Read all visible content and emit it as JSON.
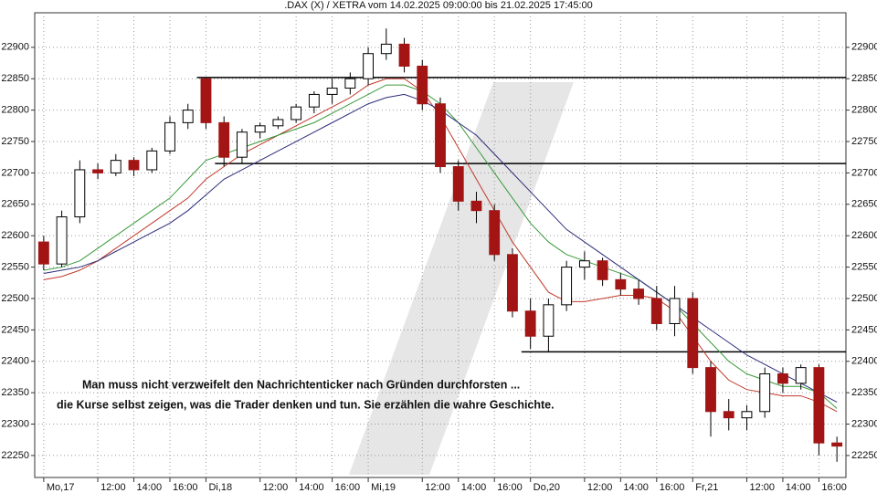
{
  "chart_data": {
    "type": "candlestick",
    "title": ".DAX (X) / XETRA vom 14.02.2025 09:00:00 bis 21.02.2025 17:45:00",
    "categories": [
      "Mo,17",
      null,
      null,
      "12:00",
      null,
      "14:00",
      null,
      "16:00",
      null,
      "Di,18",
      null,
      null,
      "12:00",
      null,
      "14:00",
      null,
      "16:00",
      null,
      "Mi,19",
      null,
      null,
      "12:00",
      null,
      "14:00",
      null,
      "16:00",
      null,
      "Do,20",
      null,
      null,
      "12:00",
      null,
      "14:00",
      null,
      "16:00",
      null,
      "Fr,21",
      null,
      null,
      "12:00",
      null,
      "14:00",
      null,
      "16:00",
      null
    ],
    "open": [
      22590,
      22555,
      22630,
      22705,
      22700,
      22720,
      22705,
      22735,
      22780,
      22850,
      22780,
      22725,
      22765,
      22775,
      22785,
      22805,
      22825,
      22835,
      22850,
      22890,
      22905,
      22870,
      22810,
      22710,
      22655,
      22640,
      22570,
      22480,
      22440,
      22490,
      22550,
      22560,
      22530,
      22515,
      22500,
      22460,
      22500,
      22390,
      22320,
      22310,
      22320,
      22380,
      22365,
      22390,
      22270
    ],
    "high": [
      22600,
      22640,
      22720,
      22715,
      22730,
      22725,
      22740,
      22790,
      22810,
      22852,
      22790,
      22770,
      22780,
      22790,
      22810,
      22830,
      22850,
      22860,
      22900,
      22930,
      22915,
      22880,
      22820,
      22720,
      22670,
      22650,
      22580,
      22500,
      22500,
      22560,
      22575,
      22565,
      22540,
      22530,
      22520,
      22520,
      22510,
      22400,
      22340,
      22330,
      22390,
      22390,
      22395,
      22395,
      22280
    ],
    "low": [
      22545,
      22550,
      22620,
      22690,
      22695,
      22695,
      22700,
      22730,
      22770,
      22770,
      22710,
      22715,
      22755,
      22770,
      22780,
      22795,
      22810,
      22825,
      22840,
      22880,
      22860,
      22800,
      22700,
      22640,
      22620,
      22560,
      22470,
      22420,
      22415,
      22480,
      22530,
      22520,
      22505,
      22490,
      22450,
      22440,
      22380,
      22280,
      22290,
      22290,
      22310,
      22350,
      22355,
      22250,
      22240
    ],
    "close": [
      22555,
      22630,
      22705,
      22700,
      22720,
      22705,
      22735,
      22780,
      22800,
      22780,
      22725,
      22765,
      22775,
      22785,
      22805,
      22825,
      22835,
      22850,
      22890,
      22905,
      22870,
      22810,
      22710,
      22655,
      22640,
      22570,
      22480,
      22440,
      22490,
      22550,
      22560,
      22530,
      22515,
      22500,
      22460,
      22500,
      22390,
      22320,
      22310,
      22320,
      22380,
      22365,
      22390,
      22270,
      22265
    ],
    "up_color": "#ffffff",
    "down_color": "#a31515",
    "series": [
      {
        "color": "#c0392b",
        "values": [
          22530,
          22535,
          22545,
          22560,
          22580,
          22600,
          22620,
          22640,
          22660,
          22690,
          22710,
          22730,
          22745,
          22760,
          22775,
          22790,
          22805,
          22820,
          22840,
          22850,
          22850,
          22830,
          22790,
          22740,
          22690,
          22640,
          22590,
          22550,
          22510,
          22495,
          22495,
          22500,
          22505,
          22505,
          22500,
          22480,
          22440,
          22400,
          22370,
          22355,
          22350,
          22345,
          22345,
          22335,
          22320
        ]
      },
      {
        "color": "#3a9a3a",
        "values": [
          22545,
          22550,
          22560,
          22580,
          22600,
          22620,
          22640,
          22660,
          22690,
          22720,
          22730,
          22740,
          22750,
          22760,
          22770,
          22780,
          22795,
          22810,
          22825,
          22840,
          22840,
          22830,
          22810,
          22780,
          22740,
          22700,
          22660,
          22620,
          22590,
          22570,
          22560,
          22550,
          22540,
          22530,
          22510,
          22490,
          22460,
          22430,
          22400,
          22380,
          22370,
          22360,
          22360,
          22350,
          22325
        ]
      },
      {
        "color": "#2c2c7a",
        "values": [
          22540,
          22545,
          22550,
          22560,
          22575,
          22590,
          22605,
          22620,
          22640,
          22665,
          22690,
          22705,
          22720,
          22735,
          22750,
          22765,
          22780,
          22795,
          22810,
          22820,
          22825,
          22815,
          22800,
          22780,
          22760,
          22730,
          22700,
          22670,
          22640,
          22610,
          22590,
          22570,
          22550,
          22530,
          22510,
          22490,
          22470,
          22450,
          22430,
          22410,
          22395,
          22380,
          22365,
          22350,
          22335
        ]
      }
    ],
    "levels": [
      {
        "value": 22852,
        "from": 9
      },
      {
        "value": 22715,
        "from": 10
      },
      {
        "value": 22415,
        "from": 27
      }
    ],
    "ylim": [
      22215,
      22955
    ],
    "yticks": [
      22250,
      22300,
      22350,
      22400,
      22450,
      22500,
      22550,
      22600,
      22650,
      22700,
      22750,
      22800,
      22850,
      22900
    ],
    "grid": true,
    "annotations": [
      "Man muss nicht verzweifelt den Nachrichtenticker nach Gründen durchforsten ...",
      "die Kurse selbst zeigen, was die Trader denken und tun. Sie erzählen die wahre Geschichte."
    ]
  }
}
